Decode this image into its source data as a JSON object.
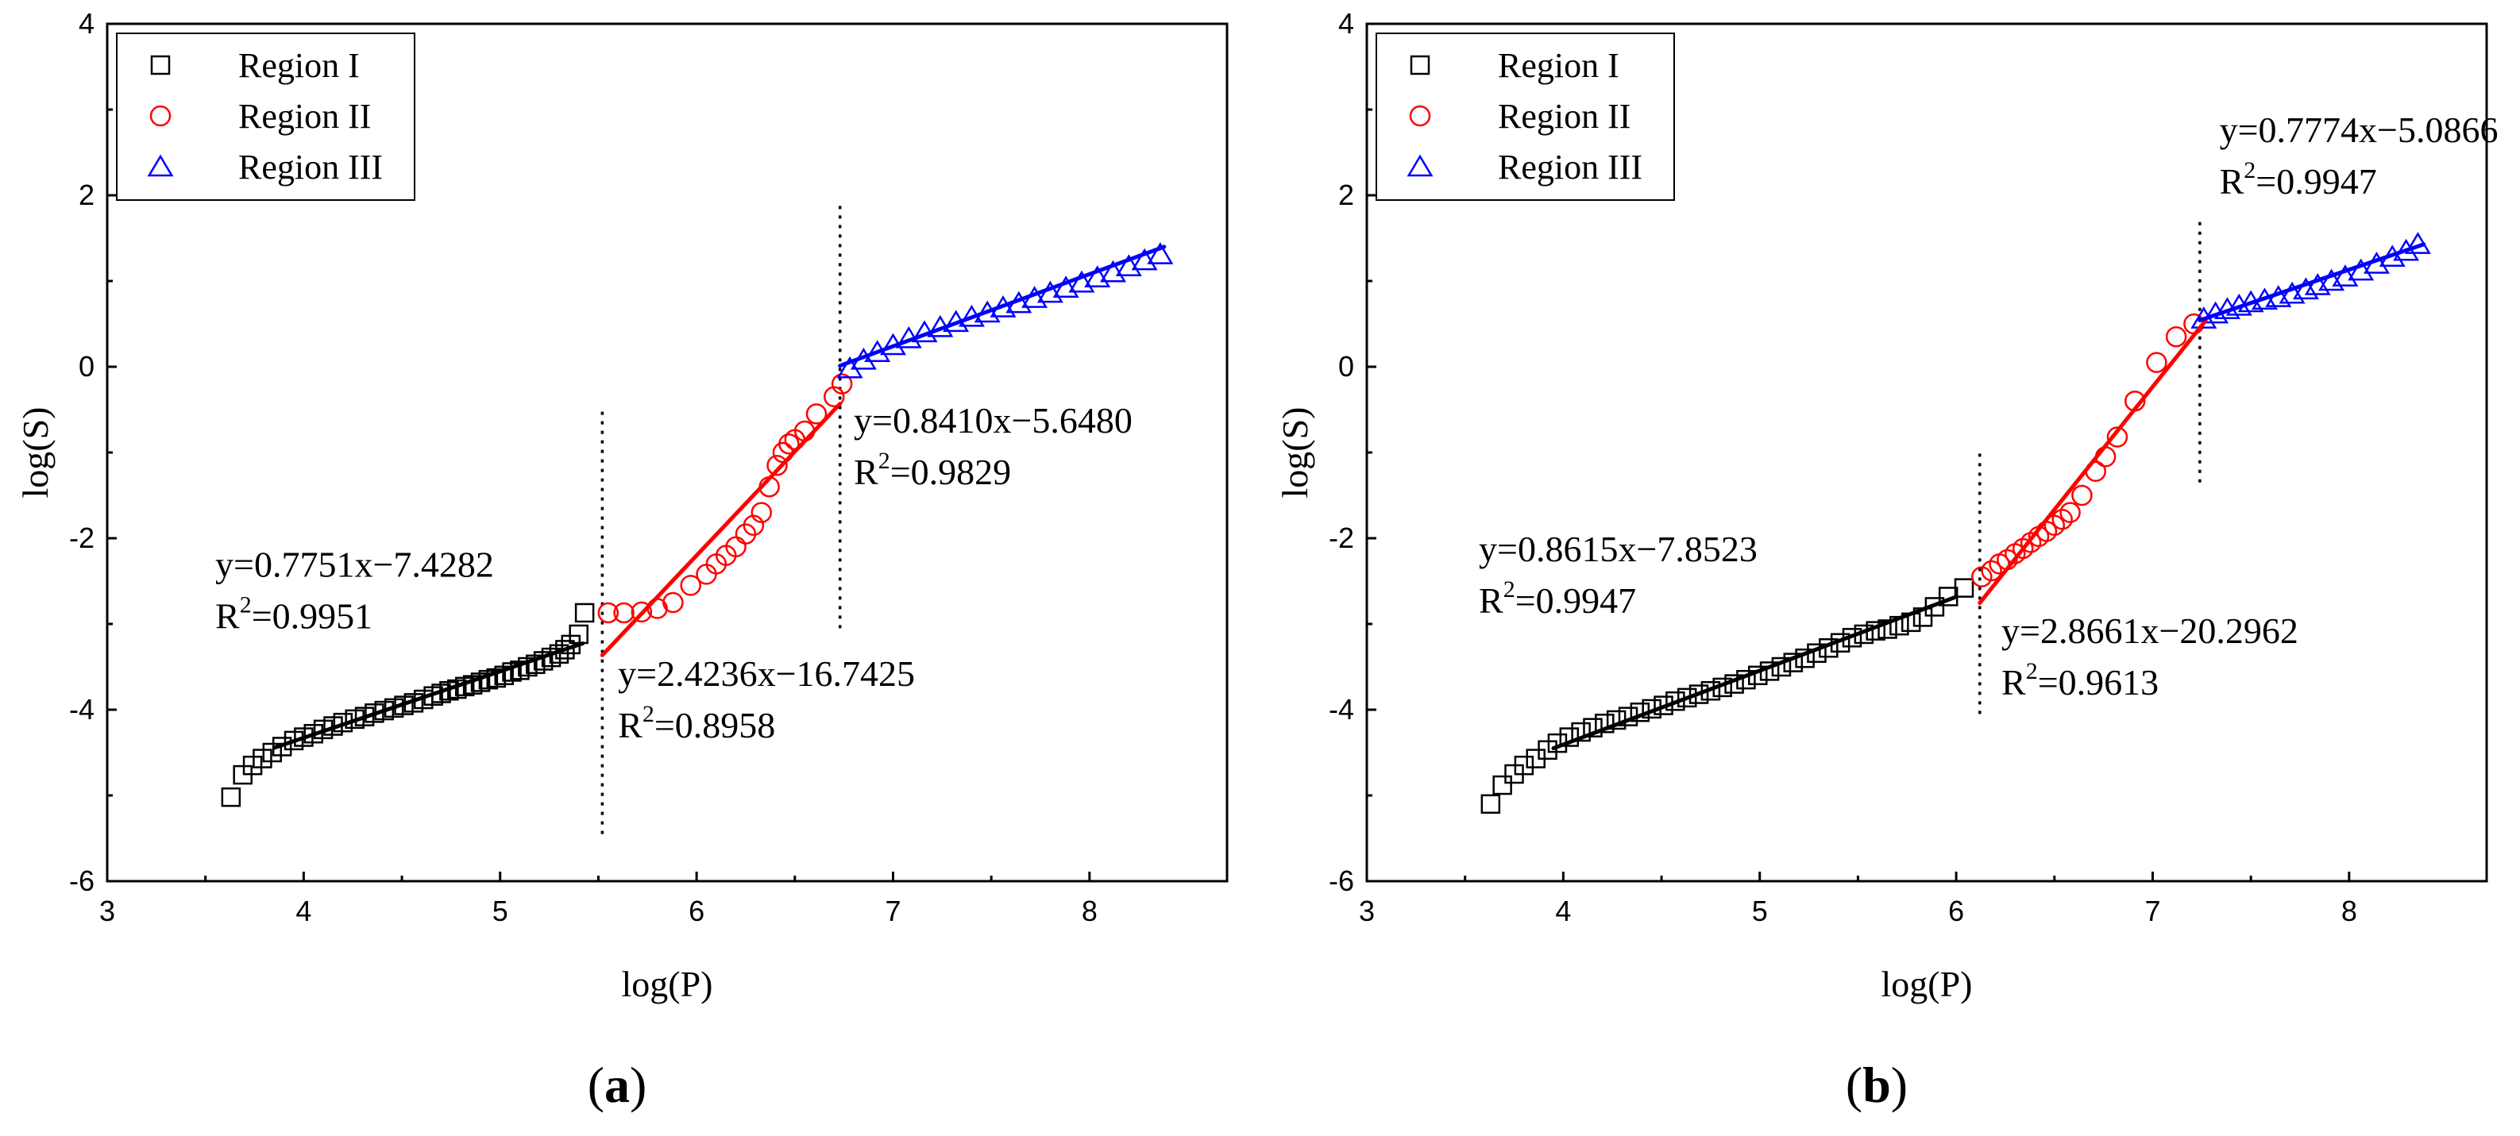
{
  "chart_data": [
    {
      "type": "scatter",
      "panel_label": "a",
      "xlabel": "log(P)",
      "ylabel": "log(S)",
      "xlim": [
        3,
        8.7
      ],
      "ylim": [
        -6,
        4
      ],
      "xticks": [
        3,
        4,
        5,
        6,
        7,
        8
      ],
      "yticks": [
        -6,
        -4,
        -2,
        0,
        2,
        4
      ],
      "legend": {
        "position": "top-left",
        "entries": [
          "Region I",
          "Region II",
          "Region III"
        ]
      },
      "series": [
        {
          "name": "Region I",
          "marker": "square",
          "color": "#000000",
          "x": [
            3.63,
            3.69,
            3.74,
            3.79,
            3.84,
            3.89,
            3.95,
            4.0,
            4.05,
            4.1,
            4.15,
            4.2,
            4.26,
            4.31,
            4.36,
            4.41,
            4.46,
            4.51,
            4.56,
            4.61,
            4.66,
            4.7,
            4.74,
            4.78,
            4.82,
            4.86,
            4.9,
            4.94,
            4.98,
            5.02,
            5.06,
            5.1,
            5.14,
            5.18,
            5.22,
            5.26,
            5.3,
            5.33,
            5.36,
            5.4,
            5.43
          ],
          "y": [
            -5.02,
            -4.76,
            -4.65,
            -4.57,
            -4.5,
            -4.43,
            -4.36,
            -4.32,
            -4.28,
            -4.23,
            -4.19,
            -4.15,
            -4.11,
            -4.08,
            -4.04,
            -4.01,
            -3.98,
            -3.95,
            -3.92,
            -3.88,
            -3.84,
            -3.81,
            -3.78,
            -3.76,
            -3.73,
            -3.71,
            -3.68,
            -3.65,
            -3.63,
            -3.6,
            -3.56,
            -3.54,
            -3.5,
            -3.47,
            -3.43,
            -3.39,
            -3.35,
            -3.3,
            -3.24,
            -3.12,
            -2.87
          ]
        },
        {
          "name": "Region II",
          "marker": "circle",
          "color": "#ff0000",
          "x": [
            5.55,
            5.63,
            5.72,
            5.8,
            5.88,
            5.97,
            6.05,
            6.1,
            6.15,
            6.2,
            6.25,
            6.29,
            6.33,
            6.37,
            6.41,
            6.44,
            6.47,
            6.5,
            6.55,
            6.61,
            6.7,
            6.74
          ],
          "y": [
            -2.87,
            -2.87,
            -2.86,
            -2.82,
            -2.75,
            -2.55,
            -2.42,
            -2.3,
            -2.2,
            -2.1,
            -1.95,
            -1.85,
            -1.7,
            -1.4,
            -1.15,
            -1.0,
            -0.9,
            -0.85,
            -0.75,
            -0.55,
            -0.35,
            -0.2
          ]
        },
        {
          "name": "Region III",
          "marker": "triangle",
          "color": "#0000ff",
          "x": [
            6.78,
            6.85,
            6.92,
            7.0,
            7.08,
            7.16,
            7.24,
            7.32,
            7.4,
            7.48,
            7.56,
            7.64,
            7.72,
            7.8,
            7.88,
            7.96,
            8.04,
            8.12,
            8.2,
            8.28,
            8.36
          ],
          "y": [
            -0.02,
            0.08,
            0.17,
            0.25,
            0.33,
            0.4,
            0.46,
            0.52,
            0.58,
            0.63,
            0.69,
            0.74,
            0.8,
            0.86,
            0.92,
            0.98,
            1.04,
            1.1,
            1.17,
            1.24,
            1.31
          ]
        }
      ],
      "fit_lines": [
        {
          "color": "#000000",
          "slope": 0.7751,
          "intercept": -7.4282,
          "x_range": [
            3.85,
            5.42
          ]
        },
        {
          "color": "#ff0000",
          "slope": 2.4236,
          "intercept": -16.7425,
          "x_range": [
            5.52,
            6.73
          ]
        },
        {
          "color": "#0000ff",
          "slope": 0.841,
          "intercept": -5.648,
          "x_range": [
            6.73,
            8.38
          ]
        }
      ],
      "dividers": [
        {
          "x": 5.52,
          "y_range": [
            -5.45,
            -0.45
          ]
        },
        {
          "x": 6.73,
          "y_range": [
            -3.05,
            1.95
          ]
        }
      ],
      "annotations": [
        {
          "eq": "y=0.7751x−7.4282",
          "r2": "=0.9951",
          "at": [
            3.55,
            -2.45
          ]
        },
        {
          "eq": "y=2.4236x−16.7425",
          "r2": "=0.8958",
          "at": [
            5.6,
            -3.72
          ]
        },
        {
          "eq": "y=0.8410x−5.6480",
          "r2": "=0.9829",
          "at": [
            6.8,
            -0.77
          ]
        }
      ]
    },
    {
      "type": "scatter",
      "panel_label": "b",
      "xlabel": "log(P)",
      "ylabel": "log(S)",
      "xlim": [
        3,
        8.7
      ],
      "ylim": [
        -6,
        4
      ],
      "xticks": [
        3,
        4,
        5,
        6,
        7,
        8
      ],
      "yticks": [
        -6,
        -4,
        -2,
        0,
        2,
        4
      ],
      "legend": {
        "position": "top-left",
        "entries": [
          "Region I",
          "Region II",
          "Region III"
        ]
      },
      "series": [
        {
          "name": "Region I",
          "marker": "square",
          "color": "#000000",
          "x": [
            3.63,
            3.69,
            3.75,
            3.8,
            3.86,
            3.92,
            3.97,
            4.03,
            4.09,
            4.15,
            4.21,
            4.27,
            4.33,
            4.39,
            4.45,
            4.51,
            4.57,
            4.63,
            4.69,
            4.75,
            4.81,
            4.87,
            4.93,
            4.99,
            5.05,
            5.11,
            5.17,
            5.23,
            5.29,
            5.35,
            5.41,
            5.47,
            5.53,
            5.59,
            5.65,
            5.71,
            5.77,
            5.83,
            5.89,
            5.96,
            6.04
          ],
          "y": [
            -5.1,
            -4.88,
            -4.75,
            -4.65,
            -4.57,
            -4.47,
            -4.39,
            -4.32,
            -4.26,
            -4.21,
            -4.16,
            -4.12,
            -4.08,
            -4.03,
            -3.99,
            -3.95,
            -3.9,
            -3.86,
            -3.82,
            -3.78,
            -3.74,
            -3.7,
            -3.65,
            -3.6,
            -3.55,
            -3.5,
            -3.45,
            -3.4,
            -3.34,
            -3.28,
            -3.22,
            -3.16,
            -3.12,
            -3.08,
            -3.06,
            -3.02,
            -2.98,
            -2.92,
            -2.8,
            -2.68,
            -2.58
          ]
        },
        {
          "name": "Region II",
          "marker": "circle",
          "color": "#ff0000",
          "x": [
            6.13,
            6.18,
            6.22,
            6.26,
            6.3,
            6.34,
            6.38,
            6.42,
            6.46,
            6.5,
            6.54,
            6.58,
            6.64,
            6.71,
            6.76,
            6.82,
            6.91,
            7.02,
            7.12,
            7.21
          ],
          "y": [
            -2.45,
            -2.38,
            -2.3,
            -2.25,
            -2.18,
            -2.12,
            -2.05,
            -1.98,
            -1.92,
            -1.85,
            -1.78,
            -1.7,
            -1.5,
            -1.22,
            -1.05,
            -0.82,
            -0.4,
            0.05,
            0.35,
            0.5
          ]
        },
        {
          "name": "Region III",
          "marker": "triangle",
          "color": "#0000ff",
          "x": [
            7.26,
            7.32,
            7.38,
            7.44,
            7.5,
            7.57,
            7.64,
            7.71,
            7.78,
            7.84,
            7.91,
            7.98,
            8.06,
            8.14,
            8.22,
            8.29,
            8.35
          ],
          "y": [
            0.56,
            0.62,
            0.67,
            0.71,
            0.75,
            0.78,
            0.81,
            0.85,
            0.9,
            0.95,
            1.0,
            1.05,
            1.12,
            1.2,
            1.28,
            1.35,
            1.43
          ]
        }
      ],
      "fit_lines": [
        {
          "color": "#000000",
          "slope": 0.8615,
          "intercept": -7.8523,
          "x_range": [
            3.95,
            6.0
          ]
        },
        {
          "color": "#ff0000",
          "slope": 2.8661,
          "intercept": -20.2962,
          "x_range": [
            6.12,
            7.27
          ]
        },
        {
          "color": "#0000ff",
          "slope": 0.7774,
          "intercept": -5.0866,
          "x_range": [
            7.24,
            8.38
          ]
        }
      ],
      "dividers": [
        {
          "x": 6.12,
          "y_range": [
            -4.05,
            -0.95
          ]
        },
        {
          "x": 7.24,
          "y_range": [
            -1.35,
            1.7
          ]
        }
      ],
      "annotations": [
        {
          "eq": "y=0.8615x−7.8523",
          "r2": "=0.9947",
          "at": [
            3.57,
            -2.27
          ]
        },
        {
          "eq": "y=2.8661x−20.2962",
          "r2": "=0.9613",
          "at": [
            6.23,
            -3.22
          ]
        },
        {
          "eq": "y=0.7774x−5.0866",
          "r2": "=0.9947",
          "at": [
            7.34,
            2.62
          ]
        }
      ]
    }
  ]
}
